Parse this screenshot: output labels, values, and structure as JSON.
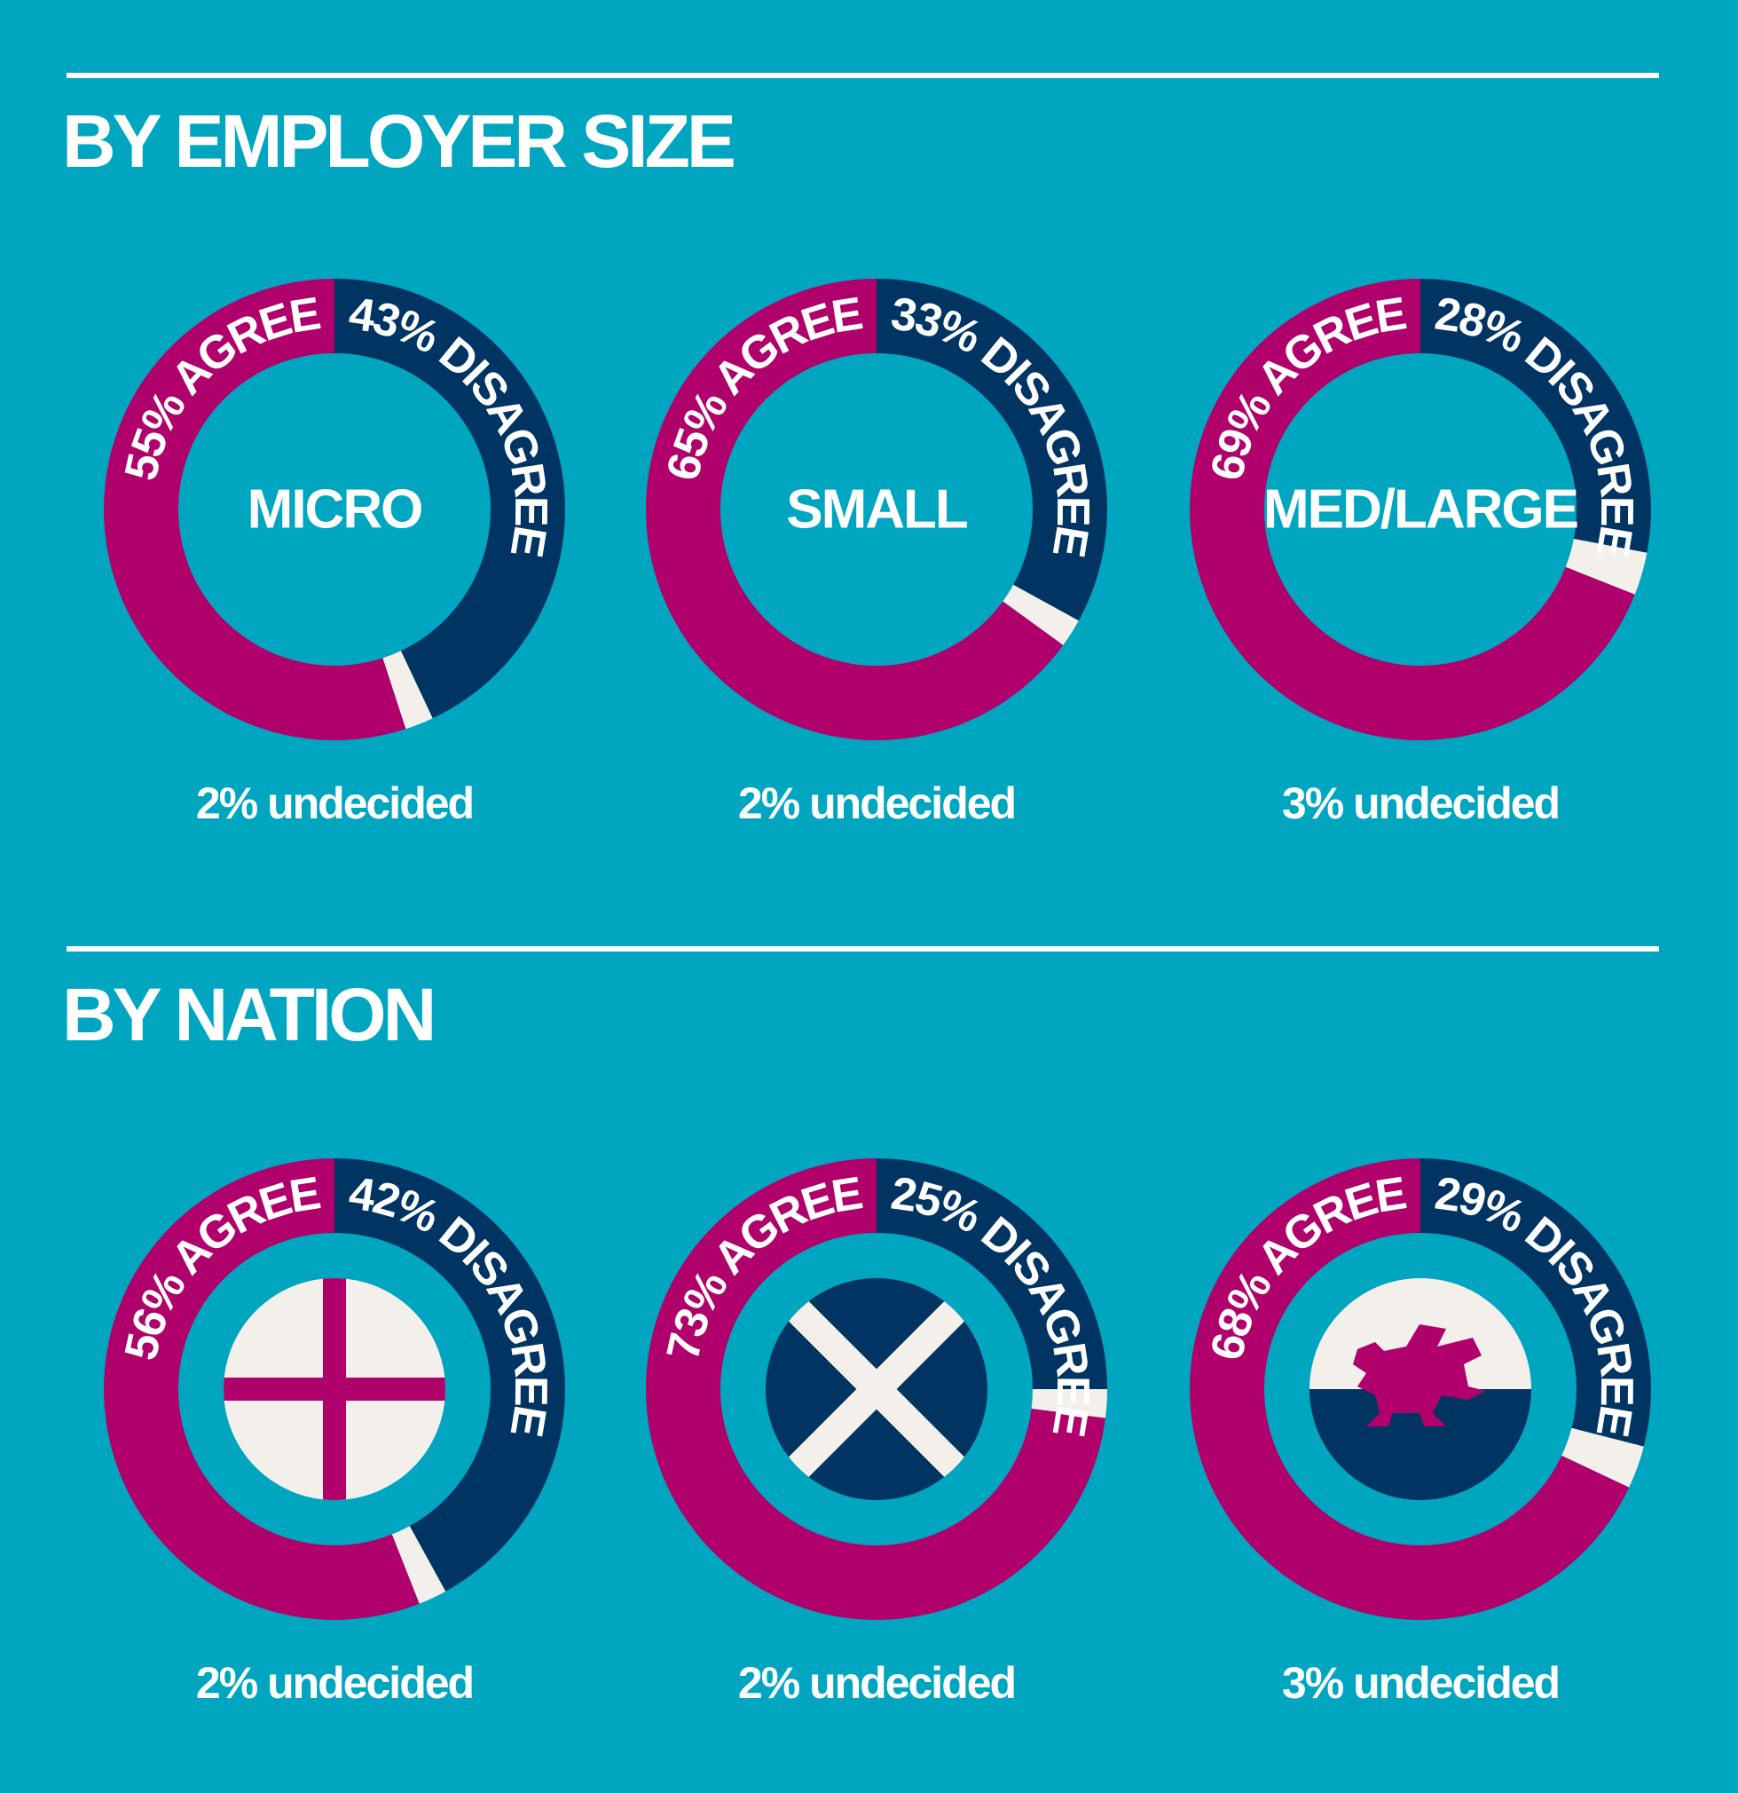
{
  "sections": [
    {
      "title": "BY EMPLOYER SIZE"
    },
    {
      "title": "BY NATION"
    }
  ],
  "chart_data": [
    {
      "type": "donut",
      "title": "MICRO",
      "values": [
        55,
        43,
        2
      ],
      "value_labels": [
        "55% AGREE",
        "43% DISAGREE",
        "2% undecided"
      ],
      "colors": [
        "#b0006b",
        "#003462",
        "#f3f0eb"
      ]
    },
    {
      "type": "donut",
      "title": "SMALL",
      "values": [
        65,
        33,
        2
      ],
      "value_labels": [
        "65% AGREE",
        "33% DISAGREE",
        "2% undecided"
      ],
      "colors": [
        "#b0006b",
        "#003462",
        "#f3f0eb"
      ]
    },
    {
      "type": "donut",
      "title": "MED/LARGE",
      "values": [
        69,
        28,
        3
      ],
      "value_labels": [
        "69% AGREE",
        "28% DISAGREE",
        "3% undecided"
      ],
      "colors": [
        "#b0006b",
        "#003462",
        "#f3f0eb"
      ]
    },
    {
      "type": "donut",
      "values": [
        56,
        42,
        2
      ],
      "value_labels": [
        "56% AGREE",
        "42% DISAGREE",
        "2% undecided"
      ],
      "colors": [
        "#b0006b",
        "#003462",
        "#f3f0eb"
      ]
    },
    {
      "type": "donut",
      "values": [
        73,
        25,
        2
      ],
      "value_labels": [
        "73% AGREE",
        "25% DISAGREE",
        "2% undecided"
      ],
      "colors": [
        "#b0006b",
        "#003462",
        "#f3f0eb"
      ]
    },
    {
      "type": "donut",
      "values": [
        68,
        29,
        3
      ],
      "value_labels": [
        "68% AGREE",
        "29% DISAGREE",
        "3% undecided"
      ],
      "colors": [
        "#b0006b",
        "#003462",
        "#f3f0eb"
      ]
    }
  ]
}
